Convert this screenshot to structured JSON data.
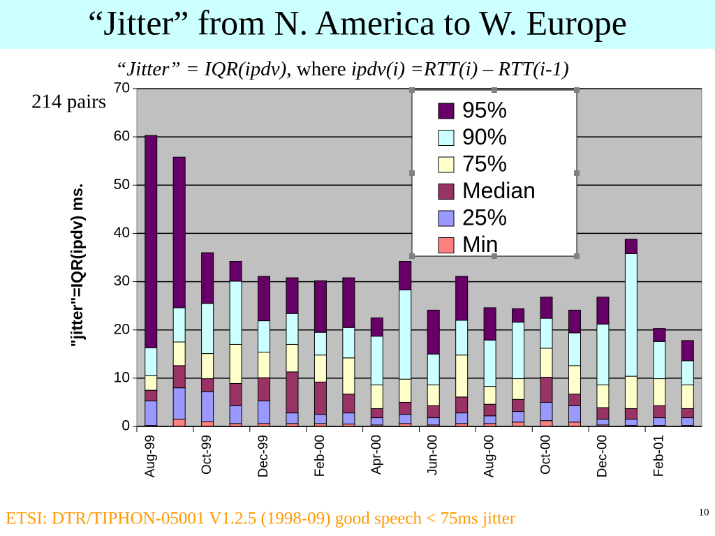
{
  "chart_data": {
    "type": "stacked_bar",
    "title": "“Jitter” from N. America to W. Europe",
    "subtitle": [
      "“Jitter” = IQR(ipdv),",
      "where",
      "ipdv(i) =RTT(i) – RTT(i-1)"
    ],
    "annotation": "214 pairs",
    "y_label": "\"jitter\"=IQR(ipdv) ms.",
    "footnote": "ETSI: DTR/TIPHON-05001 V1.2.5 (1998-09) good speech < 75ms jitter",
    "page_number": "10",
    "categories": [
      "Aug-99",
      null,
      "Oct-99",
      null,
      "Dec-99",
      null,
      "Feb-00",
      null,
      "Apr-00",
      null,
      "Jun-00",
      null,
      "Aug-00",
      null,
      "Oct-00",
      null,
      "Dec-00",
      null,
      "Feb-01",
      null
    ],
    "series": [
      {
        "name": "Min",
        "color": "#ff8080",
        "values": [
          0.2,
          1.5,
          1,
          0.6,
          0.6,
          0.6,
          0.6,
          0.5,
          0.3,
          0.6,
          0.3,
          0.6,
          0.6,
          0.9,
          1.2,
          0.9,
          0.3,
          0.2,
          0.2,
          0.2
        ]
      },
      {
        "name": "25%",
        "color": "#9999ff",
        "values": [
          5.1,
          6.5,
          6.2,
          3.7,
          4.7,
          2.2,
          1.9,
          2.3,
          1.5,
          1.9,
          1.5,
          2.2,
          1.6,
          2.2,
          3.8,
          3.4,
          1.2,
          1.3,
          1.6,
          1.6
        ]
      },
      {
        "name": "Median",
        "color": "#993366",
        "values": [
          2.2,
          4.6,
          2.7,
          4.6,
          4.8,
          8.5,
          6.7,
          3.9,
          1.9,
          2.5,
          2.5,
          3.3,
          2.4,
          2.5,
          5.2,
          2.4,
          2.4,
          2.2,
          2.5,
          1.9
        ]
      },
      {
        "name": "75%",
        "color": "#ffffcc",
        "values": [
          3,
          4.9,
          5.2,
          8.1,
          5.3,
          5.7,
          5.6,
          7.5,
          4.9,
          4.8,
          4.3,
          8.7,
          3.7,
          4.3,
          6,
          5.9,
          4.7,
          6.7,
          5.6,
          4.9
        ]
      },
      {
        "name": "90%",
        "color": "#ccffff",
        "values": [
          5.8,
          7.1,
          10.4,
          13.1,
          6.5,
          6.4,
          4.7,
          6.3,
          10.1,
          18.5,
          6.4,
          7.2,
          9.6,
          11.7,
          6.2,
          6.8,
          12.6,
          25.4,
          7.7,
          5
        ]
      },
      {
        "name": "95%",
        "color": "#660066",
        "values": [
          44,
          31.2,
          10.5,
          4.1,
          9.2,
          7.4,
          10.7,
          10.3,
          3.8,
          5.9,
          9.1,
          9.1,
          6.7,
          2.8,
          4.4,
          4.7,
          5.6,
          3,
          2.7,
          4.2
        ]
      }
    ],
    "ylim": [
      0,
      70
    ],
    "yticks": [
      0,
      10,
      20,
      30,
      40,
      50,
      60,
      70
    ],
    "grid": true
  }
}
